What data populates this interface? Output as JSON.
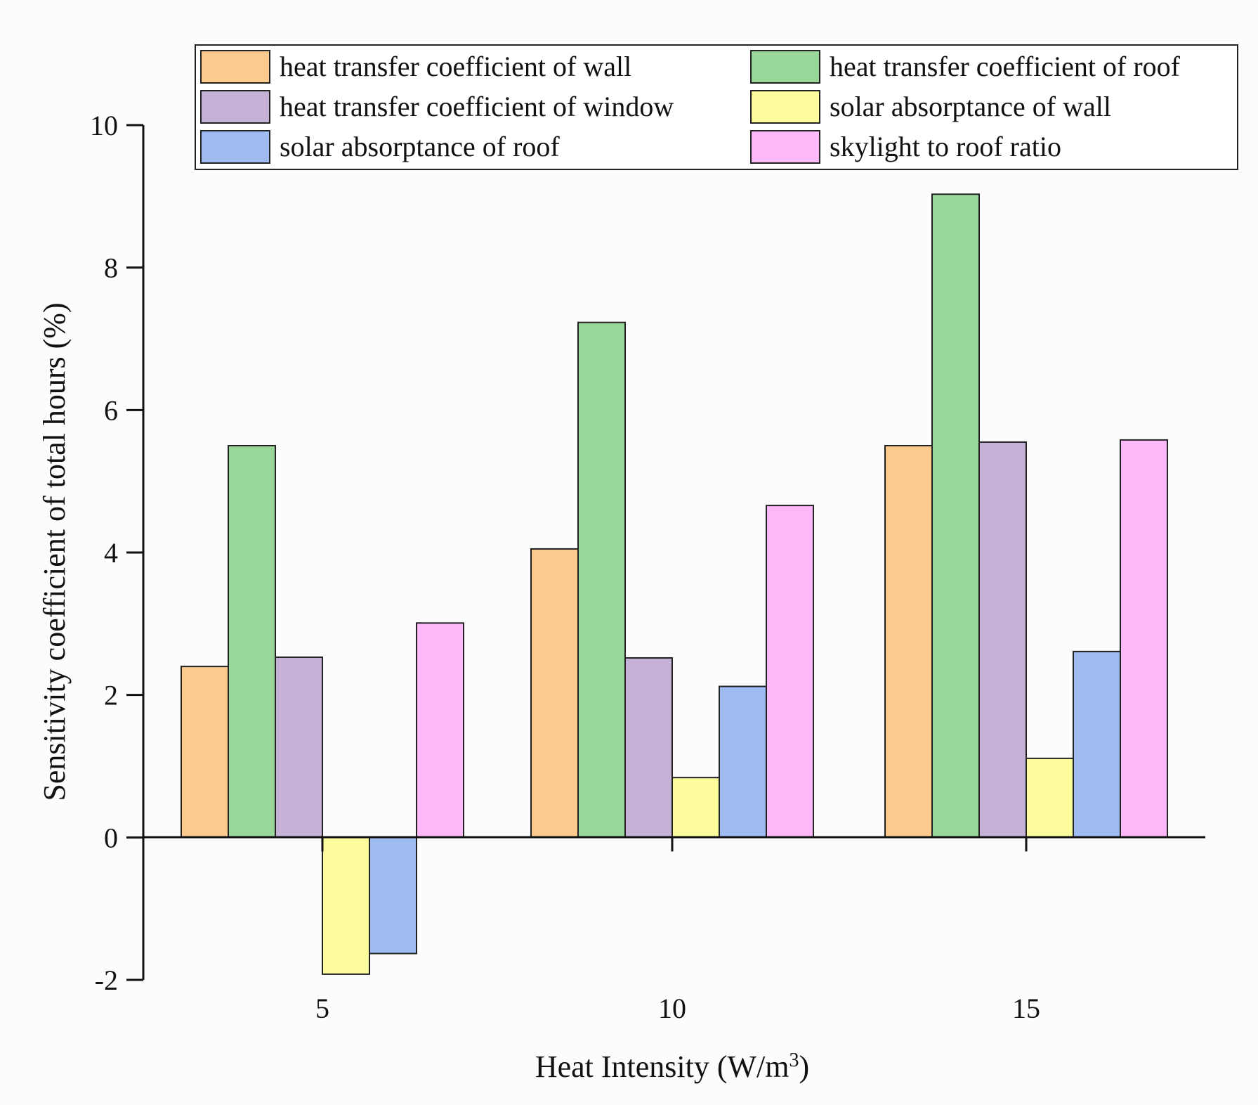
{
  "chart_data": {
    "type": "bar",
    "title": "",
    "xlabel": "Heat Intensity (W/m",
    "xlabel_superscript": "3",
    "xlabel_suffix": ")",
    "ylabel": "Sensitivity coefficient of total hours (%)",
    "ylim": [
      -2,
      10
    ],
    "yticks": [
      "-2",
      "0",
      "2",
      "4",
      "6",
      "8",
      "10"
    ],
    "categories": [
      "5",
      "10",
      "15"
    ],
    "legend_position": "top",
    "series": [
      {
        "name": "heat transfer coefficient of wall",
        "color": "#fcc98e",
        "values": [
          2.4,
          4.05,
          5.5
        ]
      },
      {
        "name": "heat transfer coefficient of roof",
        "color": "#99d699",
        "values": [
          5.5,
          7.23,
          9.03
        ]
      },
      {
        "name": "heat transfer coefficient of window",
        "color": "#c5b0d6",
        "values": [
          2.53,
          2.52,
          5.55
        ]
      },
      {
        "name": "solar absorptance of wall",
        "color": "#fcfc9c",
        "values": [
          -1.92,
          0.84,
          1.11
        ]
      },
      {
        "name": "solar absorptance of roof",
        "color": "#9ebbf2",
        "values": [
          -1.63,
          2.12,
          2.61
        ]
      },
      {
        "name": "skylight to roof ratio",
        "color": "#fcb8f8",
        "values": [
          3.01,
          4.66,
          5.58
        ]
      }
    ]
  }
}
